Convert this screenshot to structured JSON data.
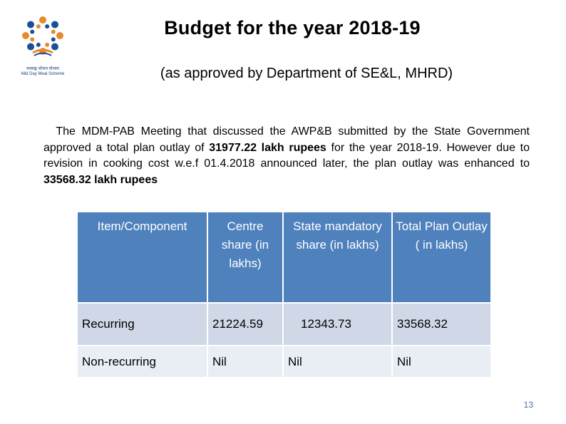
{
  "slide": {
    "title": "Budget for the year 2018-19",
    "subtitle": "(as approved by Department of SE&L, MHRD)",
    "logo_text_hindi": "मध्याह्न भोजन योजना",
    "logo_text_english": "Mid Day Meal Scheme",
    "paragraph": {
      "part1": "The MDM-PAB Meeting that discussed the AWP&B submitted by the State Government approved a total plan outlay of ",
      "amount1": "31977.22 lakh rupees",
      "part2": " for the year 2018-19. However due to revision in cooking cost w.e.f 01.4.2018 announced later, the plan outlay was enhanced to ",
      "amount2": "33568.32 lakh rupees"
    },
    "page_number": "13"
  },
  "table": {
    "headers": [
      "Item/Component",
      "Centre share (in lakhs)",
      "State mandatory share (in lakhs)",
      "Total Plan Outlay ( in lakhs)"
    ],
    "rows": [
      [
        "Recurring",
        "21224.59",
        "12343.73",
        "33568.32"
      ],
      [
        "Non-recurring",
        "Nil",
        "Nil",
        "Nil"
      ]
    ]
  },
  "colors": {
    "header_bg": "#4f81bd",
    "row1_bg": "#d0d8e8",
    "row2_bg": "#e9edf4",
    "logo_orange": "#e8892b",
    "logo_blue": "#1b4f9c"
  }
}
